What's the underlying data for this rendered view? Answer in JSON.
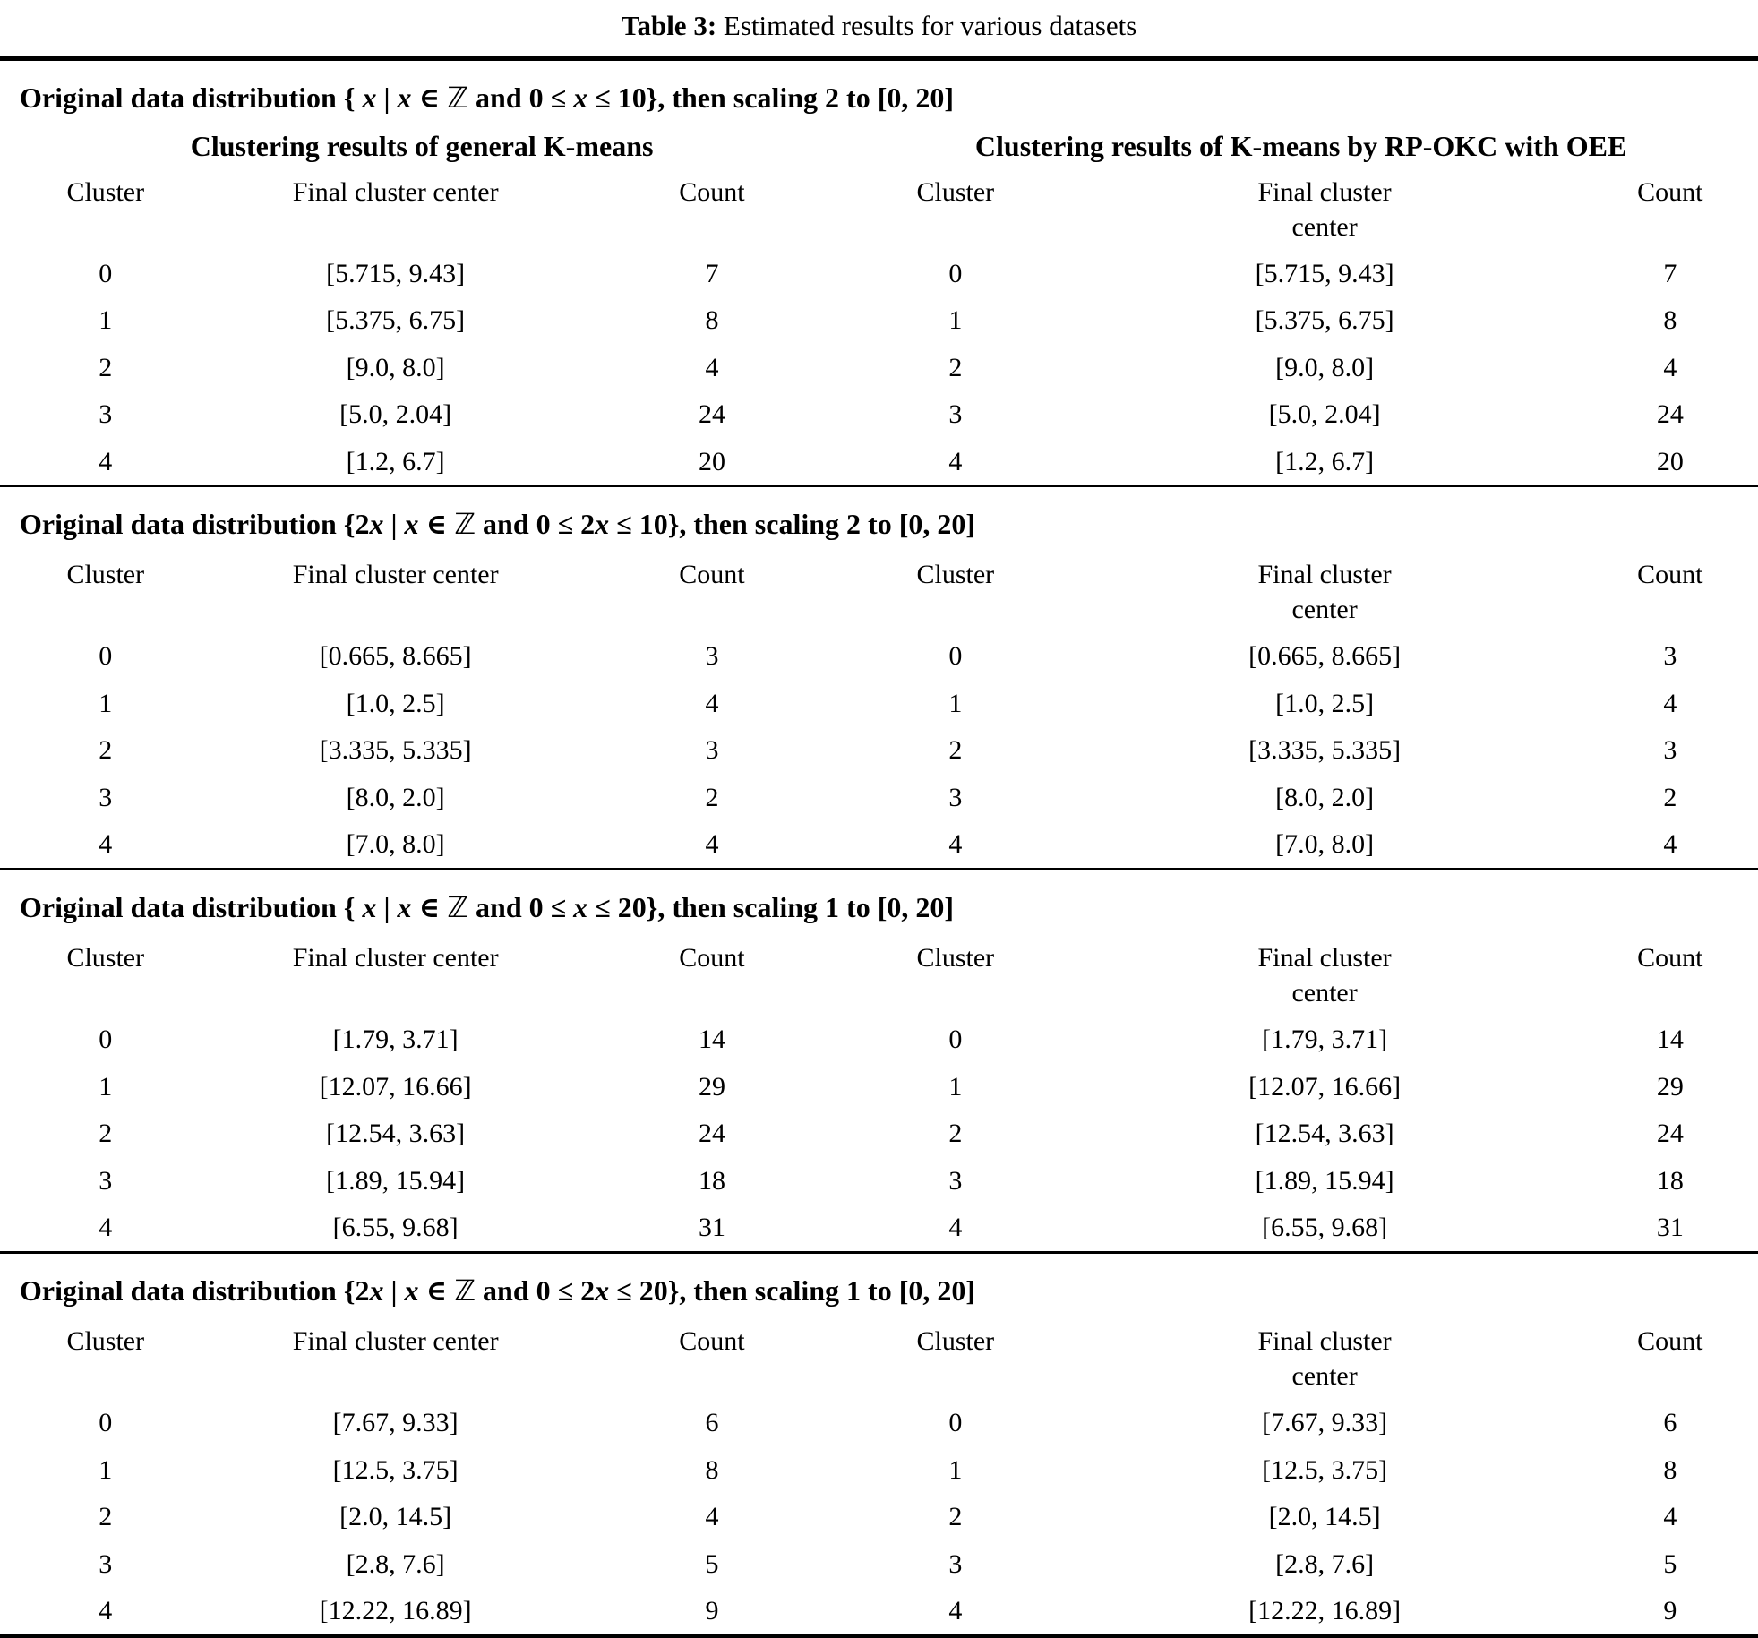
{
  "title": {
    "label": "Table 3:",
    "text": " Estimated results for various datasets"
  },
  "table": {
    "group_headers": {
      "left": "Clustering results of general K-means",
      "right": "Clustering results of K-means by RP-OKC with OEE"
    },
    "column_headers": {
      "cluster": "Cluster",
      "final_center": "Final cluster center",
      "count": "Count",
      "final_center_wrapped": [
        "Final cluster",
        "center"
      ]
    },
    "sections": [
      {
        "header": [
          {
            "text": "Original data distribution { ",
            "style": "t"
          },
          {
            "text": "x",
            "style": "xi"
          },
          {
            "text": " | ",
            "style": "t"
          },
          {
            "text": "x",
            "style": "xi"
          },
          {
            "text": " ∈ ",
            "style": "t"
          },
          {
            "text": "ℤ",
            "style": "bb"
          },
          {
            "text": " and 0 ≤ ",
            "style": "t"
          },
          {
            "text": "x",
            "style": "xi"
          },
          {
            "text": " ≤ 10}, then scaling 2 to [0, 20]",
            "style": "t"
          }
        ],
        "rows": [
          [
            "0",
            "[5.715, 9.43]",
            "7",
            "0",
            "[5.715, 9.43]",
            "7"
          ],
          [
            "1",
            "[5.375, 6.75]",
            "8",
            "1",
            "[5.375, 6.75]",
            "8"
          ],
          [
            "2",
            "[9.0, 8.0]",
            "4",
            "2",
            "[9.0, 8.0]",
            "4"
          ],
          [
            "3",
            "[5.0, 2.04]",
            "24",
            "3",
            "[5.0, 2.04]",
            "24"
          ],
          [
            "4",
            "[1.2, 6.7]",
            "20",
            "4",
            "[1.2, 6.7]",
            "20"
          ]
        ]
      },
      {
        "header": [
          {
            "text": "Original data distribution {2",
            "style": "t"
          },
          {
            "text": "x",
            "style": "xi"
          },
          {
            "text": " | ",
            "style": "t"
          },
          {
            "text": "x",
            "style": "xi"
          },
          {
            "text": " ∈ ",
            "style": "t"
          },
          {
            "text": "ℤ",
            "style": "bb"
          },
          {
            "text": " and 0 ≤ 2",
            "style": "t"
          },
          {
            "text": "x",
            "style": "xi"
          },
          {
            "text": " ≤ 10}, then scaling 2 to [0, 20]",
            "style": "t"
          }
        ],
        "rows": [
          [
            "0",
            "[0.665, 8.665]",
            "3",
            "0",
            "[0.665, 8.665]",
            "3"
          ],
          [
            "1",
            "[1.0, 2.5]",
            "4",
            "1",
            "[1.0, 2.5]",
            "4"
          ],
          [
            "2",
            "[3.335, 5.335]",
            "3",
            "2",
            "[3.335, 5.335]",
            "3"
          ],
          [
            "3",
            "[8.0, 2.0]",
            "2",
            "3",
            "[8.0, 2.0]",
            "2"
          ],
          [
            "4",
            "[7.0, 8.0]",
            "4",
            "4",
            "[7.0, 8.0]",
            "4"
          ]
        ]
      },
      {
        "header": [
          {
            "text": "Original data distribution { ",
            "style": "t"
          },
          {
            "text": "x",
            "style": "xi"
          },
          {
            "text": " | ",
            "style": "t"
          },
          {
            "text": "x",
            "style": "xi"
          },
          {
            "text": " ∈ ",
            "style": "t"
          },
          {
            "text": "ℤ",
            "style": "bb"
          },
          {
            "text": " and 0 ≤ ",
            "style": "t"
          },
          {
            "text": "x",
            "style": "xi"
          },
          {
            "text": " ≤ 20}, then scaling 1 to [0, 20]",
            "style": "t"
          }
        ],
        "rows": [
          [
            "0",
            "[1.79, 3.71]",
            "14",
            "0",
            "[1.79, 3.71]",
            "14"
          ],
          [
            "1",
            "[12.07, 16.66]",
            "29",
            "1",
            "[12.07, 16.66]",
            "29"
          ],
          [
            "2",
            "[12.54, 3.63]",
            "24",
            "2",
            "[12.54, 3.63]",
            "24"
          ],
          [
            "3",
            "[1.89, 15.94]",
            "18",
            "3",
            "[1.89, 15.94]",
            "18"
          ],
          [
            "4",
            "[6.55, 9.68]",
            "31",
            "4",
            "[6.55, 9.68]",
            "31"
          ]
        ]
      },
      {
        "header": [
          {
            "text": "Original data distribution {2",
            "style": "t"
          },
          {
            "text": "x",
            "style": "xi"
          },
          {
            "text": " | ",
            "style": "t"
          },
          {
            "text": "x",
            "style": "xi"
          },
          {
            "text": " ∈ ",
            "style": "t"
          },
          {
            "text": "ℤ",
            "style": "bb"
          },
          {
            "text": " and 0 ≤ 2",
            "style": "t"
          },
          {
            "text": "x",
            "style": "xi"
          },
          {
            "text": " ≤ 20}, then scaling 1 to [0, 20]",
            "style": "t"
          }
        ],
        "rows": [
          [
            "0",
            "[7.67, 9.33]",
            "6",
            "0",
            "[7.67, 9.33]",
            "6"
          ],
          [
            "1",
            "[12.5, 3.75]",
            "8",
            "1",
            "[12.5, 3.75]",
            "8"
          ],
          [
            "2",
            "[2.0, 14.5]",
            "4",
            "2",
            "[2.0, 14.5]",
            "4"
          ],
          [
            "3",
            "[2.8, 7.6]",
            "5",
            "3",
            "[2.8, 7.6]",
            "5"
          ],
          [
            "4",
            "[12.22, 16.89]",
            "9",
            "4",
            "[12.22, 16.89]",
            "9"
          ]
        ]
      }
    ]
  }
}
